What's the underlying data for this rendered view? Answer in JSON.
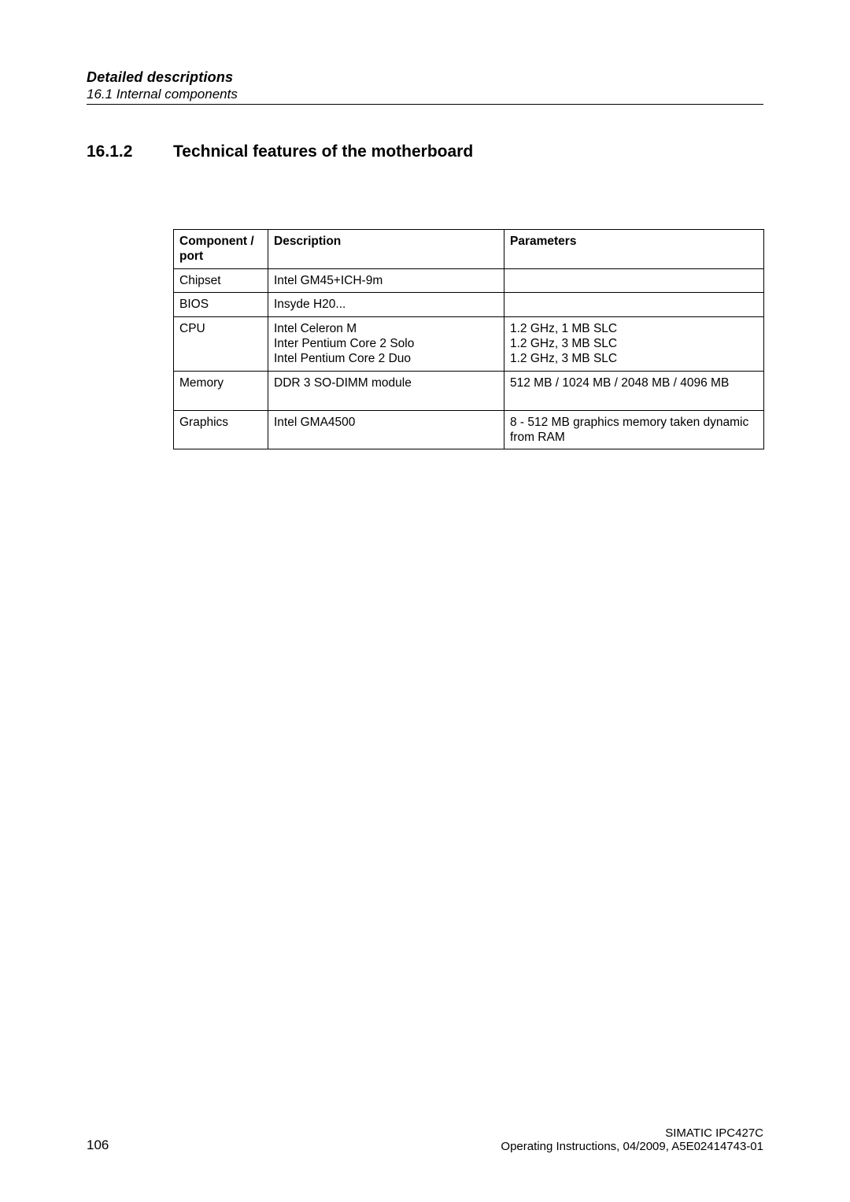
{
  "header": {
    "title": "Detailed descriptions",
    "sub": "16.1 Internal components"
  },
  "section": {
    "number": "16.1.2",
    "title": "Technical features of the motherboard"
  },
  "table": {
    "headers": {
      "c1": "Component / port",
      "c2": "Description",
      "c3": "Parameters"
    },
    "rows": [
      {
        "c1": "Chipset",
        "c2": "Intel GM45+ICH-9m",
        "c3": ""
      },
      {
        "c1": "BIOS",
        "c2": "Insyde H20...",
        "c3": ""
      },
      {
        "c1": "CPU",
        "c2": "Intel Celeron M\nInter Pentium Core 2 Solo\nIntel Pentium Core 2 Duo",
        "c3": "1.2 GHz, 1 MB SLC\n1.2 GHz, 3 MB SLC\n1.2 GHz, 3 MB SLC"
      },
      {
        "c1": "Memory",
        "c2": "DDR 3 SO-DIMM module",
        "c3": "512 MB / 1024 MB / 2048 MB / 4096 MB",
        "tall": true
      },
      {
        "c1": "Graphics",
        "c2": "Intel GMA4500",
        "c3": "8 - 512 MB graphics memory taken dynamic from RAM"
      }
    ]
  },
  "footer": {
    "page": "106",
    "line1": "SIMATIC IPC427C",
    "line2": "Operating Instructions, 04/2009, A5E02414743-01"
  }
}
